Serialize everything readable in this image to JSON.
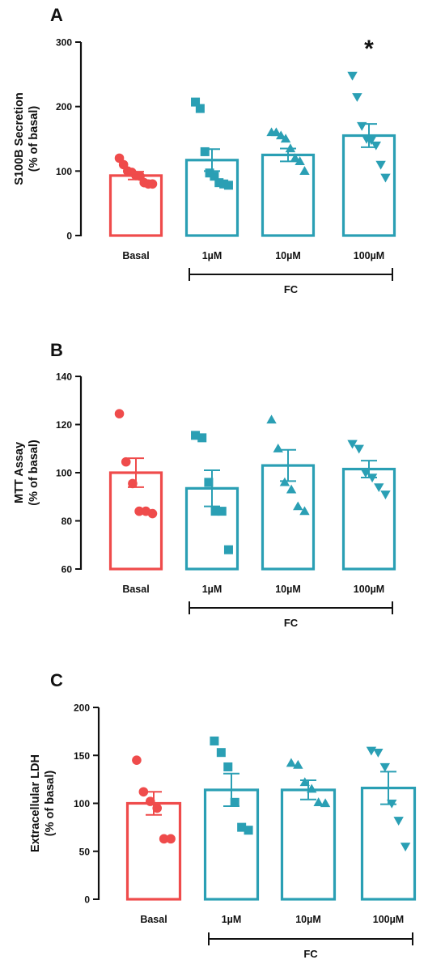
{
  "colors": {
    "basal": "#ef4b4b",
    "treated": "#2a9fb4",
    "axis": "#111111"
  },
  "categories": [
    "Basal",
    "1µM",
    "10µM",
    "100µM"
  ],
  "group_label": "FC",
  "chart_data": [
    {
      "type": "bar",
      "panel": "A",
      "ylabel": [
        "S100B Secretion",
        "(% of basal)"
      ],
      "ylim": [
        0,
        300
      ],
      "yticks": [
        0,
        100,
        200,
        300
      ],
      "categories": [
        "Basal",
        "1µM",
        "10µM",
        "100µM"
      ],
      "markers": [
        "circle",
        "square",
        "triangle-up",
        "triangle-down"
      ],
      "means": [
        93,
        117,
        125,
        155
      ],
      "sem": [
        6,
        17,
        10,
        18
      ],
      "points": [
        [
          120,
          110,
          100,
          98,
          93,
          92,
          82,
          80,
          80
        ],
        [
          207,
          197,
          130,
          97,
          92,
          82,
          80,
          78
        ],
        [
          160,
          160,
          155,
          150,
          135,
          120,
          115,
          100
        ],
        [
          248,
          215,
          170,
          150,
          148,
          140,
          110,
          90
        ]
      ],
      "significance": [
        "",
        "",
        "",
        "*"
      ]
    },
    {
      "type": "bar",
      "panel": "B",
      "ylabel": [
        "MTT Assay",
        "(% of basal)"
      ],
      "ylim": [
        60,
        140
      ],
      "yticks": [
        60,
        80,
        100,
        120,
        140
      ],
      "categories": [
        "Basal",
        "1µM",
        "10µM",
        "100µM"
      ],
      "markers": [
        "circle",
        "square",
        "triangle-up",
        "triangle-down"
      ],
      "means": [
        100,
        93.5,
        103,
        101.5
      ],
      "sem": [
        6,
        7.5,
        6.5,
        3.5
      ],
      "points": [
        [
          124.5,
          104.5,
          95.5,
          84,
          84,
          83
        ],
        [
          115.5,
          114.5,
          96,
          84,
          84,
          68
        ],
        [
          122,
          110,
          96,
          93,
          86,
          84
        ],
        [
          112,
          110,
          100,
          98,
          94,
          91
        ]
      ],
      "significance": [
        "",
        "",
        "",
        ""
      ]
    },
    {
      "type": "bar",
      "panel": "C",
      "ylabel": [
        "Extracellular LDH",
        "(% of basal)"
      ],
      "ylim": [
        0,
        200
      ],
      "yticks": [
        0,
        50,
        100,
        150,
        200
      ],
      "categories": [
        "Basal",
        "1µM",
        "10µM",
        "100µM"
      ],
      "markers": [
        "circle",
        "square",
        "triangle-up",
        "triangle-down"
      ],
      "means": [
        100,
        114,
        114,
        116
      ],
      "sem": [
        12,
        17,
        10,
        17
      ],
      "points": [
        [
          145,
          112,
          102,
          95,
          63,
          63
        ],
        [
          165,
          153,
          138,
          101,
          75,
          72
        ],
        [
          142,
          140,
          122,
          115,
          101,
          100
        ],
        [
          155,
          153,
          138,
          100,
          82,
          55
        ]
      ],
      "significance": [
        "",
        "",
        "",
        ""
      ]
    }
  ]
}
